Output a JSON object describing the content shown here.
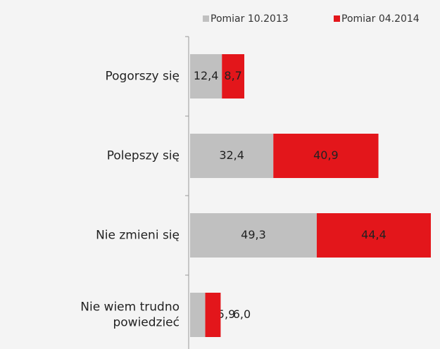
{
  "chart_data": {
    "type": "bar",
    "orientation": "horizontal",
    "stacked": true,
    "categories": [
      "Pogorszy się",
      "Polepszy się",
      "Nie zmieni się",
      "Nie wiem trudno\npowiedzieć"
    ],
    "series": [
      {
        "name": "Pomiar 10.2013",
        "color": "#c0c0c0",
        "values": [
          12.4,
          32.4,
          49.3,
          5.9
        ],
        "value_labels": [
          "12,4",
          "32,4",
          "49,3",
          "5,9"
        ]
      },
      {
        "name": "Pomiar 04.2014",
        "color": "#e3161b",
        "values": [
          8.7,
          40.9,
          44.4,
          6.0
        ],
        "value_labels": [
          "8,7",
          "40,9",
          "44,4",
          "6,0"
        ]
      }
    ],
    "legend": "top"
  }
}
